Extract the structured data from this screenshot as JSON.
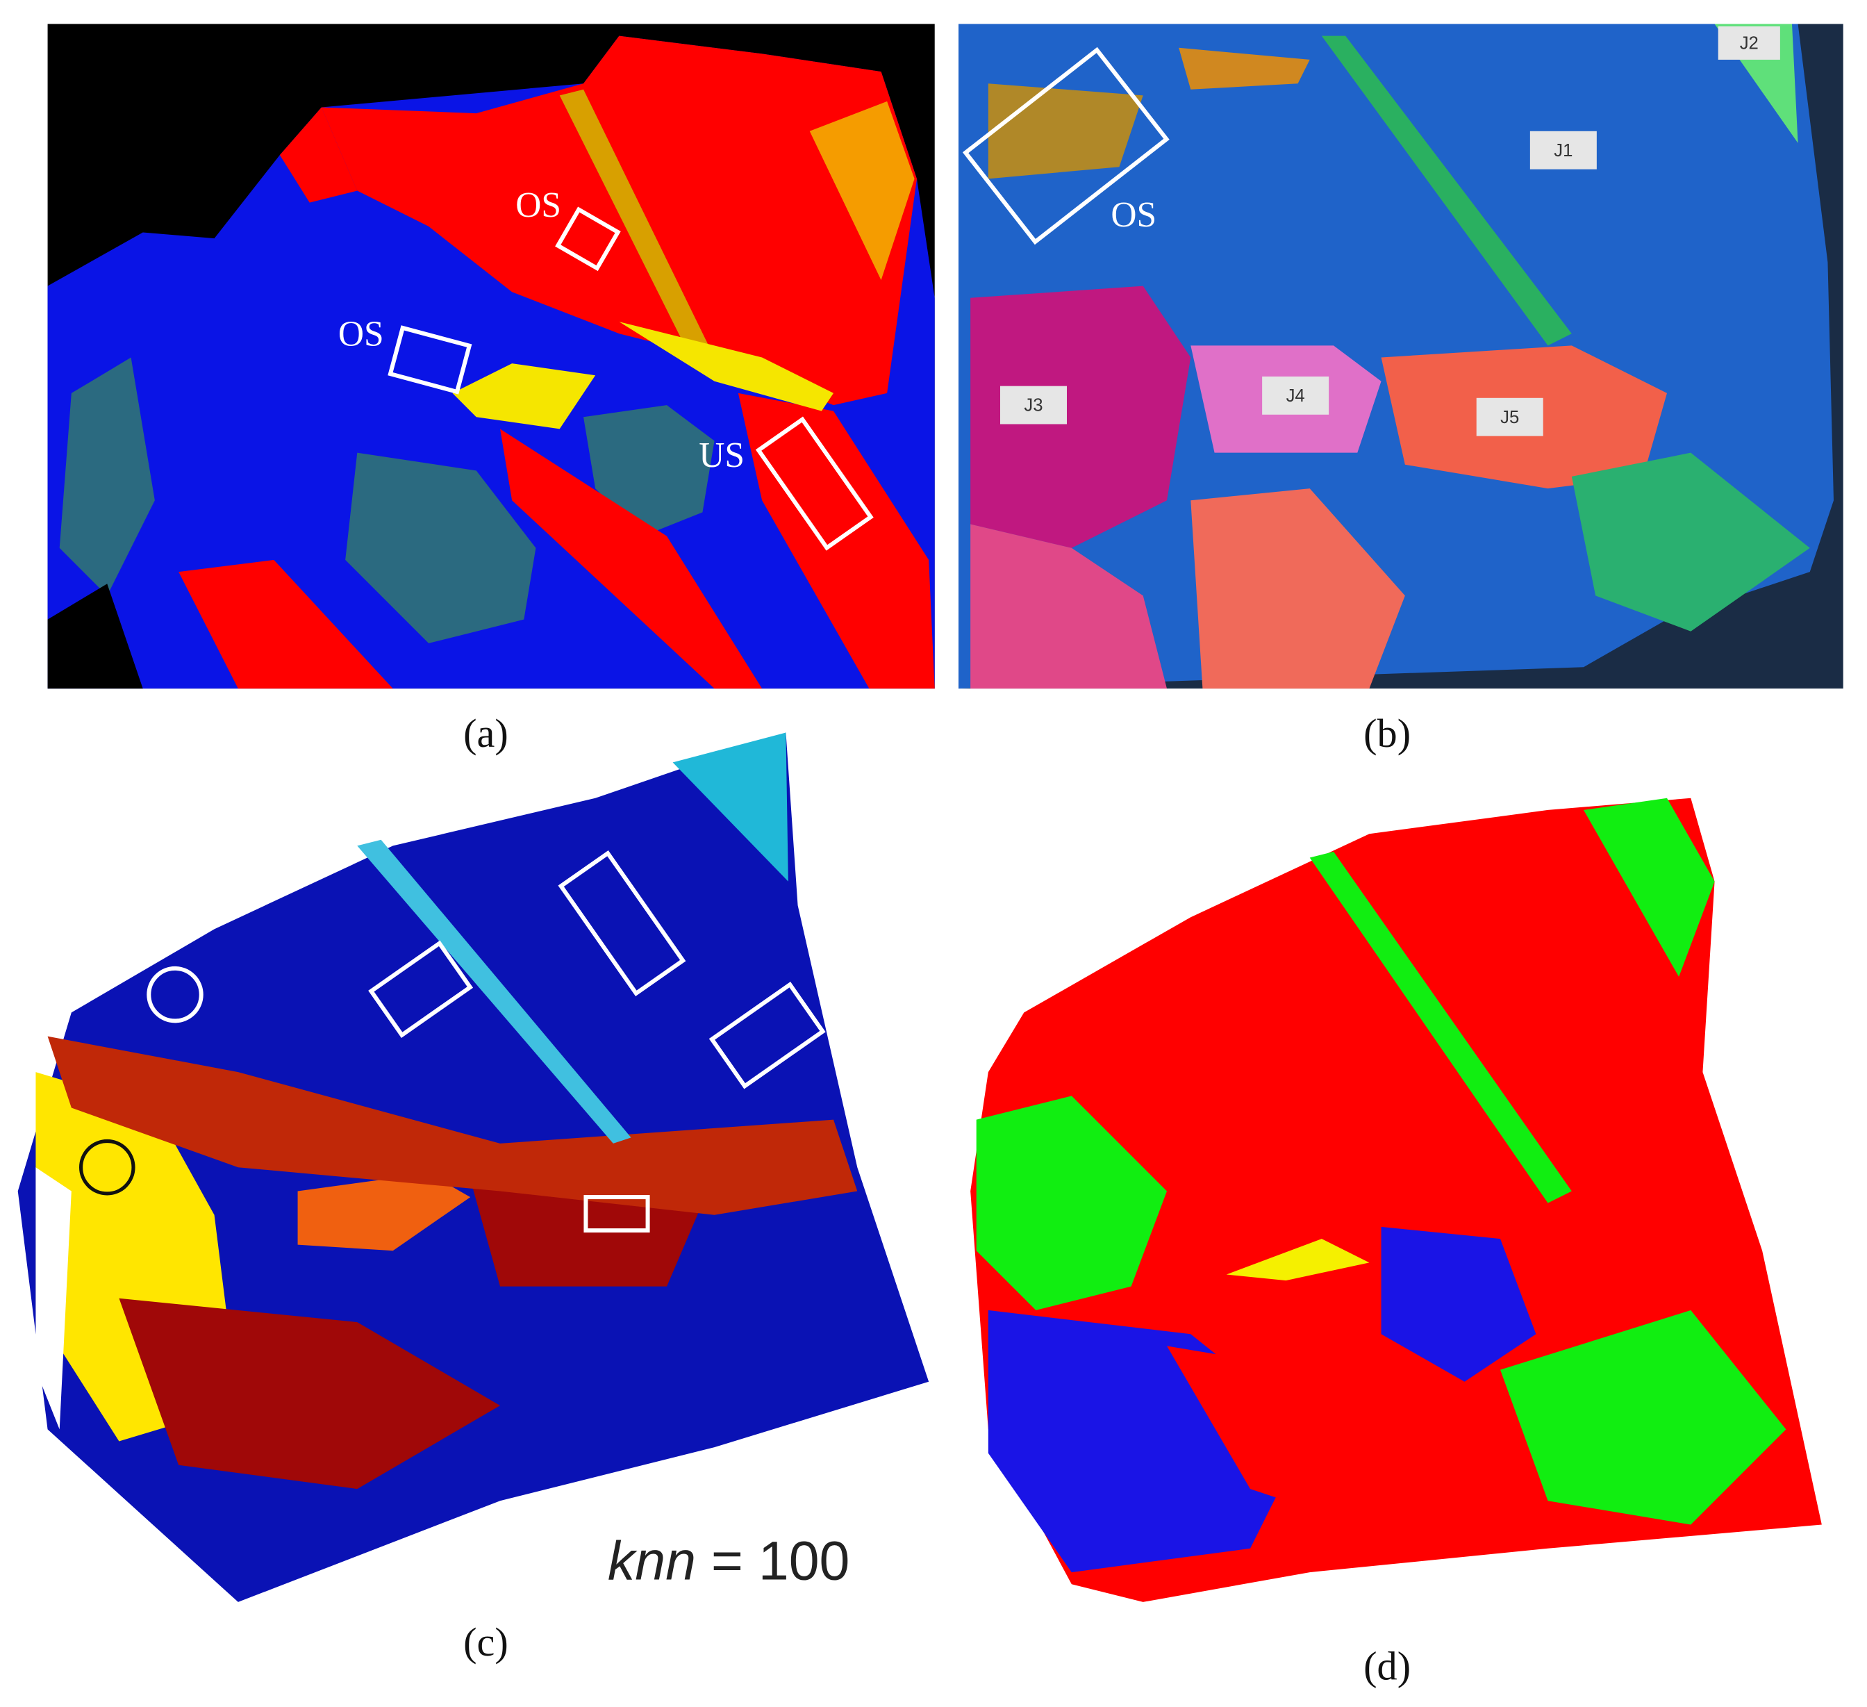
{
  "panels": [
    {
      "label": "(a)",
      "annotations": [
        "OS",
        "OS",
        "US"
      ]
    },
    {
      "label": "(b)",
      "annotations": [
        "OS",
        "J1",
        "J2",
        "J3",
        "J4",
        "J5"
      ]
    },
    {
      "label": "(c)",
      "annotation": {
        "variable": "knn",
        "text": "= 100"
      }
    },
    {
      "label": "(d)"
    }
  ]
}
